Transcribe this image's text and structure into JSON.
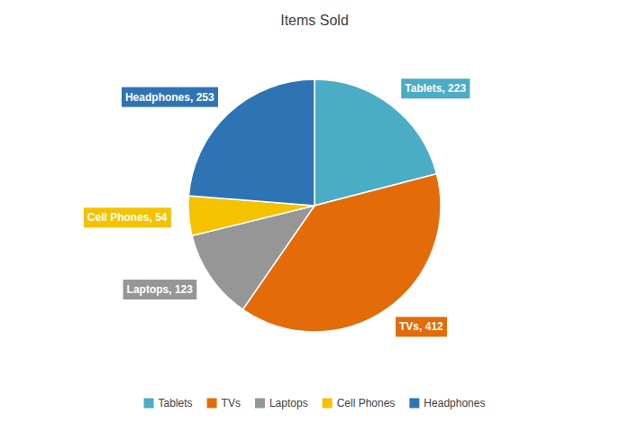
{
  "chart_data": {
    "type": "pie",
    "title": "Items Sold",
    "categories": [
      "Tablets",
      "TVs",
      "Laptops",
      "Cell Phones",
      "Headphones"
    ],
    "values": [
      223,
      412,
      123,
      54,
      253
    ],
    "value_labels": [
      "Tablets, 223",
      "TVs, 412",
      "Laptops, 123",
      "Cell Phones, 54",
      "Headphones, 253"
    ],
    "colors": [
      "#4BACC6",
      "#E36C09",
      "#969696",
      "#F5C200",
      "#2E74B5"
    ],
    "data_labels": true,
    "legend": "bottom"
  }
}
